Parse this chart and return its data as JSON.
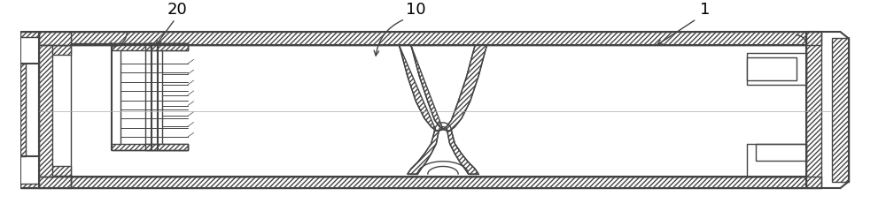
{
  "background_color": "#ffffff",
  "line_color": "#444444",
  "figure_width": 10.0,
  "figure_height": 2.39,
  "dpi": 100,
  "label_fontsize": 13
}
